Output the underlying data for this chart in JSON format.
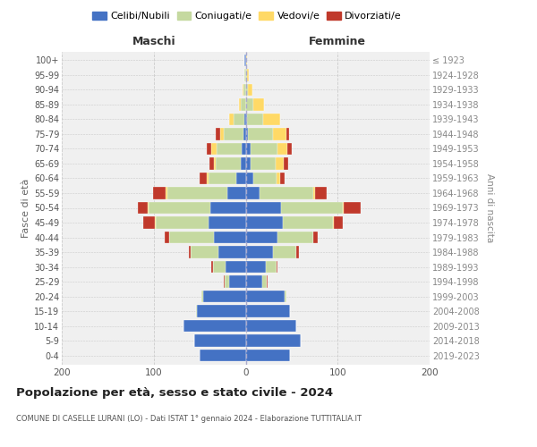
{
  "age_groups": [
    "0-4",
    "5-9",
    "10-14",
    "15-19",
    "20-24",
    "25-29",
    "30-34",
    "35-39",
    "40-44",
    "45-49",
    "50-54",
    "55-59",
    "60-64",
    "65-69",
    "70-74",
    "75-79",
    "80-84",
    "85-89",
    "90-94",
    "95-99",
    "100+"
  ],
  "birth_years": [
    "2019-2023",
    "2014-2018",
    "2009-2013",
    "2004-2008",
    "1999-2003",
    "1994-1998",
    "1989-1993",
    "1984-1988",
    "1979-1983",
    "1974-1978",
    "1969-1973",
    "1964-1968",
    "1959-1963",
    "1954-1958",
    "1949-1953",
    "1944-1948",
    "1939-1943",
    "1934-1938",
    "1929-1933",
    "1924-1928",
    "≤ 1923"
  ],
  "males": {
    "celibi": [
      50,
      56,
      68,
      53,
      46,
      18,
      22,
      30,
      35,
      40,
      38,
      20,
      10,
      5,
      4,
      2,
      1,
      0,
      0,
      0,
      1
    ],
    "coniugati": [
      0,
      0,
      0,
      1,
      2,
      5,
      14,
      30,
      48,
      58,
      68,
      65,
      30,
      28,
      28,
      22,
      12,
      5,
      2,
      1,
      0
    ],
    "vedovi": [
      0,
      0,
      0,
      0,
      0,
      0,
      0,
      0,
      0,
      1,
      1,
      2,
      2,
      2,
      5,
      4,
      5,
      2,
      1,
      0,
      0
    ],
    "divorziati": [
      0,
      0,
      0,
      0,
      0,
      1,
      1,
      2,
      5,
      12,
      10,
      14,
      8,
      4,
      5,
      5,
      0,
      0,
      0,
      0,
      0
    ]
  },
  "females": {
    "nubili": [
      48,
      60,
      55,
      48,
      42,
      18,
      22,
      30,
      35,
      40,
      38,
      15,
      8,
      5,
      5,
      2,
      1,
      0,
      0,
      0,
      0
    ],
    "coniugate": [
      0,
      0,
      0,
      0,
      2,
      5,
      12,
      25,
      38,
      55,
      68,
      58,
      26,
      28,
      30,
      28,
      18,
      8,
      2,
      1,
      0
    ],
    "vedove": [
      0,
      0,
      0,
      0,
      0,
      0,
      0,
      0,
      0,
      1,
      1,
      2,
      3,
      8,
      10,
      14,
      18,
      12,
      5,
      2,
      1
    ],
    "divorziate": [
      0,
      0,
      0,
      0,
      0,
      1,
      1,
      3,
      5,
      10,
      18,
      13,
      5,
      5,
      5,
      3,
      0,
      0,
      0,
      0,
      0
    ]
  },
  "colors": {
    "celibi": "#4472c4",
    "coniugati": "#c5d9a0",
    "vedovi": "#ffd966",
    "divorziati": "#c0392b"
  },
  "legend_labels": [
    "Celibi/Nubili",
    "Coniugati/e",
    "Vedovi/e",
    "Divorziati/e"
  ],
  "title": "Popolazione per età, sesso e stato civile - 2024",
  "subtitle": "COMUNE DI CASELLE LURANI (LO) - Dati ISTAT 1° gennaio 2024 - Elaborazione TUTTITALIA.IT",
  "xlabel_left": "Maschi",
  "xlabel_right": "Femmine",
  "ylabel_left": "Fasce di età",
  "ylabel_right": "Anni di nascita",
  "xlim": 200,
  "bg_color": "#ffffff",
  "plot_bg": "#f0f0f0"
}
